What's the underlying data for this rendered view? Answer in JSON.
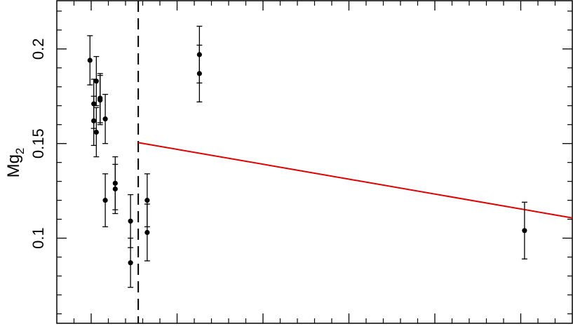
{
  "chart_data": {
    "type": "scatter",
    "xlim": [
      -1.2,
      1.8
    ],
    "ylim": [
      0.055,
      0.2255
    ],
    "ylabel": "Mg2",
    "ylabel_main": "Mg",
    "ylabel_sub": "2",
    "ytick_values": [
      0.1,
      0.15,
      0.2
    ],
    "ytick_labels": [
      "0.1",
      "0.15",
      "0.2"
    ],
    "xtick_major": [
      -1,
      -0.5,
      0,
      0.5,
      1,
      1.5
    ],
    "xtick_minor": [
      -1.1,
      -0.9,
      -0.8,
      -0.7,
      -0.6,
      -0.4,
      -0.3,
      -0.2,
      -0.1,
      0.1,
      0.2,
      0.3,
      0.4,
      0.6,
      0.7,
      0.8,
      0.9,
      1.1,
      1.2,
      1.3,
      1.4,
      1.6,
      1.7
    ],
    "ytick_minor": [
      0.06,
      0.07,
      0.08,
      0.09,
      0.11,
      0.12,
      0.13,
      0.14,
      0.16,
      0.17,
      0.18,
      0.19,
      0.21,
      0.22
    ],
    "points": [
      {
        "x": -1.007,
        "y": 0.194,
        "err": 0.013
      },
      {
        "x": -0.985,
        "y": 0.171,
        "err": 0.013
      },
      {
        "x": -0.985,
        "y": 0.162,
        "err": 0.013
      },
      {
        "x": -0.97,
        "y": 0.183,
        "err": 0.013
      },
      {
        "x": -0.97,
        "y": 0.156,
        "err": 0.013
      },
      {
        "x": -0.948,
        "y": 0.174,
        "err": 0.013
      },
      {
        "x": -0.948,
        "y": 0.173,
        "err": 0.013
      },
      {
        "x": -0.918,
        "y": 0.163,
        "err": 0.013
      },
      {
        "x": -0.918,
        "y": 0.12,
        "err": 0.014
      },
      {
        "x": -0.86,
        "y": 0.129,
        "err": 0.014
      },
      {
        "x": -0.86,
        "y": 0.126,
        "err": 0.013
      },
      {
        "x": -0.771,
        "y": 0.109,
        "err": 0.014
      },
      {
        "x": -0.771,
        "y": 0.087,
        "err": 0.013
      },
      {
        "x": -0.674,
        "y": 0.12,
        "err": 0.014
      },
      {
        "x": -0.674,
        "y": 0.103,
        "err": 0.015
      },
      {
        "x": -0.37,
        "y": 0.197,
        "err": 0.015
      },
      {
        "x": -0.37,
        "y": 0.187,
        "err": 0.015
      },
      {
        "x": 1.522,
        "y": 0.104,
        "err": 0.015
      }
    ],
    "vline": {
      "x": -0.726,
      "style": "dashed",
      "color": "#000000"
    },
    "fit_line": {
      "x0": -0.726,
      "y0": 0.1505,
      "x1": 1.8,
      "y1": 0.1107,
      "color": "#e00000"
    }
  }
}
